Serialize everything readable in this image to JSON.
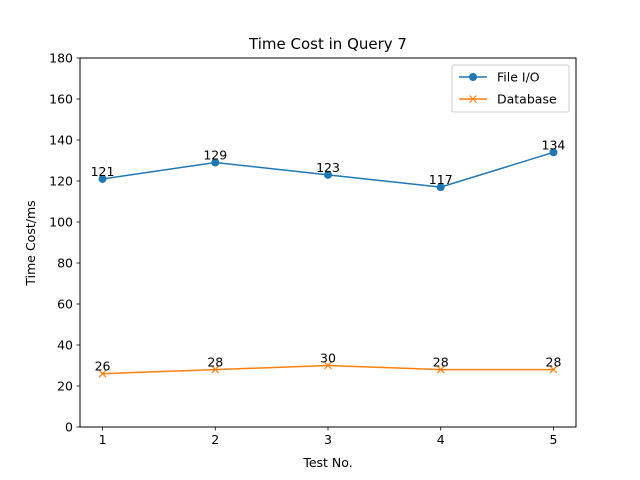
{
  "chart_data": {
    "type": "line",
    "title": "Time Cost in Query 7",
    "xlabel": "Test No.",
    "ylabel": "Time Cost/ms",
    "x": [
      1,
      2,
      3,
      4,
      5
    ],
    "xticks": [
      "1",
      "2",
      "3",
      "4",
      "5"
    ],
    "ylim": [
      0,
      180
    ],
    "yticks": [
      "0",
      "20",
      "40",
      "60",
      "80",
      "100",
      "120",
      "140",
      "160",
      "180"
    ],
    "grid": false,
    "legend_position": "top-right",
    "series": [
      {
        "name": "File I/O",
        "values": [
          121,
          129,
          123,
          117,
          134
        ],
        "color": "#1f77b4",
        "marker": "circle"
      },
      {
        "name": "Database",
        "values": [
          26,
          28,
          30,
          28,
          28
        ],
        "color": "#ff7f0e",
        "marker": "x"
      }
    ]
  }
}
